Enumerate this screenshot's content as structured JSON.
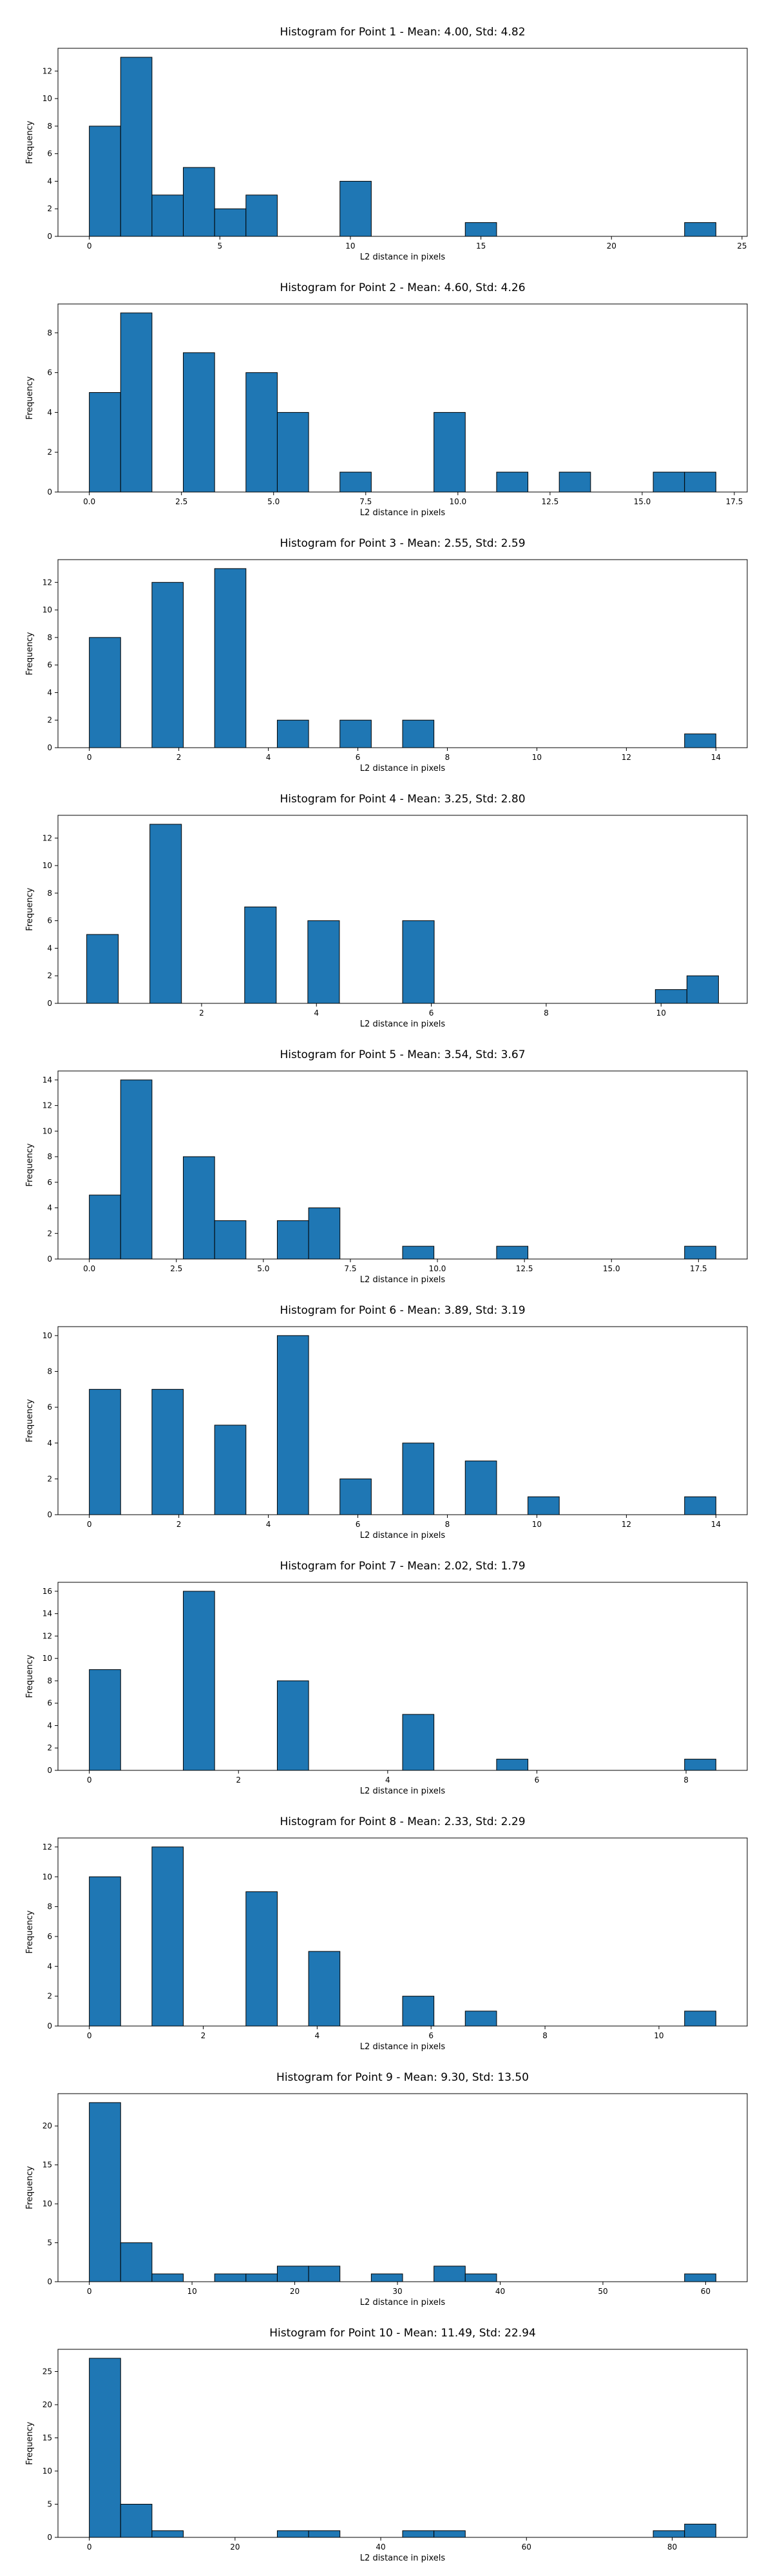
{
  "chart_data": [
    {
      "type": "bar",
      "title": "Histogram for Point 1 - Mean: 4.00, Std: 4.82",
      "xlabel": "L2 distance in pixels",
      "ylabel": "Frequency",
      "xlim": [
        -1.2,
        25.2
      ],
      "ylim": [
        0,
        13.65
      ],
      "xticks": [
        {
          "v": 0,
          "label": "0"
        },
        {
          "v": 5,
          "label": "5"
        },
        {
          "v": 10,
          "label": "10"
        },
        {
          "v": 15,
          "label": "15"
        },
        {
          "v": 20,
          "label": "20"
        },
        {
          "v": 25,
          "label": "25"
        }
      ],
      "yticks": [
        {
          "v": 0,
          "label": "0"
        },
        {
          "v": 2,
          "label": "2"
        },
        {
          "v": 4,
          "label": "4"
        },
        {
          "v": 6,
          "label": "6"
        },
        {
          "v": 8,
          "label": "8"
        },
        {
          "v": 10,
          "label": "10"
        },
        {
          "v": 12,
          "label": "12"
        }
      ],
      "bins": [
        0,
        1.2,
        2.4,
        3.6,
        4.8,
        6.0,
        7.2,
        8.4,
        9.6,
        10.8,
        12.0,
        13.2,
        14.4,
        15.6,
        16.8,
        18.0,
        19.2,
        20.4,
        21.6,
        22.8,
        24.0
      ],
      "counts": [
        8,
        13,
        3,
        5,
        2,
        3,
        0,
        0,
        4,
        0,
        0,
        0,
        1,
        0,
        0,
        0,
        0,
        0,
        0,
        1
      ]
    },
    {
      "type": "bar",
      "title": "Histogram for Point 2 - Mean: 4.60, Std: 4.26",
      "xlabel": "L2 distance in pixels",
      "ylabel": "Frequency",
      "xlim": [
        -0.85,
        17.85
      ],
      "ylim": [
        0,
        9.45
      ],
      "xticks": [
        {
          "v": 0,
          "label": "0.0"
        },
        {
          "v": 2.5,
          "label": "2.5"
        },
        {
          "v": 5,
          "label": "5.0"
        },
        {
          "v": 7.5,
          "label": "7.5"
        },
        {
          "v": 10,
          "label": "10.0"
        },
        {
          "v": 12.5,
          "label": "12.5"
        },
        {
          "v": 15,
          "label": "15.0"
        },
        {
          "v": 17.5,
          "label": "17.5"
        }
      ],
      "yticks": [
        {
          "v": 0,
          "label": "0"
        },
        {
          "v": 2,
          "label": "2"
        },
        {
          "v": 4,
          "label": "4"
        },
        {
          "v": 6,
          "label": "6"
        },
        {
          "v": 8,
          "label": "8"
        }
      ],
      "bins": [
        0,
        0.85,
        1.7,
        2.55,
        3.4,
        4.25,
        5.1,
        5.95,
        6.8,
        7.65,
        8.5,
        9.35,
        10.2,
        11.05,
        11.9,
        12.75,
        13.6,
        14.45,
        15.3,
        16.15,
        17.0
      ],
      "counts": [
        5,
        9,
        0,
        7,
        0,
        6,
        4,
        0,
        1,
        0,
        0,
        4,
        0,
        1,
        0,
        1,
        0,
        0,
        1,
        1
      ]
    },
    {
      "type": "bar",
      "title": "Histogram for Point 3 - Mean: 2.55, Std: 2.59",
      "xlabel": "L2 distance in pixels",
      "ylabel": "Frequency",
      "xlim": [
        -0.7,
        14.7
      ],
      "ylim": [
        0,
        13.65
      ],
      "xticks": [
        {
          "v": 0,
          "label": "0"
        },
        {
          "v": 2,
          "label": "2"
        },
        {
          "v": 4,
          "label": "4"
        },
        {
          "v": 6,
          "label": "6"
        },
        {
          "v": 8,
          "label": "8"
        },
        {
          "v": 10,
          "label": "10"
        },
        {
          "v": 12,
          "label": "12"
        },
        {
          "v": 14,
          "label": "14"
        }
      ],
      "yticks": [
        {
          "v": 0,
          "label": "0"
        },
        {
          "v": 2,
          "label": "2"
        },
        {
          "v": 4,
          "label": "4"
        },
        {
          "v": 6,
          "label": "6"
        },
        {
          "v": 8,
          "label": "8"
        },
        {
          "v": 10,
          "label": "10"
        },
        {
          "v": 12,
          "label": "12"
        }
      ],
      "bins": [
        0,
        0.7,
        1.4,
        2.1,
        2.8,
        3.5,
        4.2,
        4.9,
        5.6,
        6.3,
        7.0,
        7.7,
        8.4,
        9.1,
        9.8,
        10.5,
        11.2,
        11.9,
        12.6,
        13.3,
        14.0
      ],
      "counts": [
        8,
        0,
        12,
        0,
        13,
        0,
        2,
        0,
        2,
        0,
        2,
        0,
        0,
        0,
        0,
        0,
        0,
        0,
        0,
        1
      ]
    },
    {
      "type": "bar",
      "title": "Histogram for Point 4 - Mean: 3.25, Std: 2.80",
      "xlabel": "L2 distance in pixels",
      "ylabel": "Frequency",
      "xlim": [
        -0.5,
        11.5
      ],
      "ylim": [
        0,
        13.65
      ],
      "xticks": [
        {
          "v": 2,
          "label": "2"
        },
        {
          "v": 4,
          "label": "4"
        },
        {
          "v": 6,
          "label": "6"
        },
        {
          "v": 8,
          "label": "8"
        },
        {
          "v": 10,
          "label": "10"
        }
      ],
      "yticks": [
        {
          "v": 0,
          "label": "0"
        },
        {
          "v": 2,
          "label": "2"
        },
        {
          "v": 4,
          "label": "4"
        },
        {
          "v": 6,
          "label": "6"
        },
        {
          "v": 8,
          "label": "8"
        },
        {
          "v": 10,
          "label": "10"
        },
        {
          "v": 12,
          "label": "12"
        }
      ],
      "bins": [
        0,
        0.5,
        1.0,
        1.5,
        2.0,
        2.5,
        3.0,
        3.5,
        4.0,
        4.5,
        5.0,
        5.5,
        6.0,
        6.5,
        7.0,
        7.5,
        8.0,
        8.5,
        9.0,
        9.5,
        10.0
      ],
      "bins_note": "",
      "custom_bins": [
        0,
        0.55,
        1.1,
        1.65,
        2.2,
        2.75,
        3.3,
        3.85,
        4.4,
        4.95,
        5.5,
        6.05,
        6.6,
        7.15,
        7.7,
        8.25,
        8.8,
        9.35,
        9.9,
        10.45,
        11.0
      ],
      "counts": [
        5,
        0,
        13,
        0,
        0,
        7,
        0,
        6,
        0,
        0,
        6,
        0,
        0,
        0,
        0,
        0,
        0,
        0,
        1,
        2
      ]
    },
    {
      "type": "bar",
      "title": "Histogram for Point 5 - Mean: 3.54, Std: 3.67",
      "xlabel": "L2 distance in pixels",
      "ylabel": "Frequency",
      "xlim": [
        -0.9,
        18.9
      ],
      "ylim": [
        0,
        14.7
      ],
      "xticks": [
        {
          "v": 0,
          "label": "0.0"
        },
        {
          "v": 2.5,
          "label": "2.5"
        },
        {
          "v": 5,
          "label": "5.0"
        },
        {
          "v": 7.5,
          "label": "7.5"
        },
        {
          "v": 10,
          "label": "10.0"
        },
        {
          "v": 12.5,
          "label": "12.5"
        },
        {
          "v": 15,
          "label": "15.0"
        },
        {
          "v": 17.5,
          "label": "17.5"
        }
      ],
      "yticks": [
        {
          "v": 0,
          "label": "0"
        },
        {
          "v": 2,
          "label": "2"
        },
        {
          "v": 4,
          "label": "4"
        },
        {
          "v": 6,
          "label": "6"
        },
        {
          "v": 8,
          "label": "8"
        },
        {
          "v": 10,
          "label": "10"
        },
        {
          "v": 12,
          "label": "12"
        },
        {
          "v": 14,
          "label": "14"
        }
      ],
      "bins": [
        0,
        0.9,
        1.8,
        2.7,
        3.6,
        4.5,
        5.4,
        6.3,
        7.2,
        8.1,
        9.0,
        9.9,
        10.8,
        11.7,
        12.6,
        13.5,
        14.4,
        15.3,
        16.2,
        17.1,
        18.0
      ],
      "counts": [
        5,
        14,
        0,
        8,
        3,
        0,
        3,
        4,
        0,
        0,
        1,
        0,
        0,
        1,
        0,
        0,
        0,
        0,
        0,
        1
      ]
    },
    {
      "type": "bar",
      "title": "Histogram for Point 6 - Mean: 3.89, Std: 3.19",
      "xlabel": "L2 distance in pixels",
      "ylabel": "Frequency",
      "xlim": [
        -0.7,
        14.7
      ],
      "ylim": [
        0,
        10.5
      ],
      "xticks": [
        {
          "v": 0,
          "label": "0"
        },
        {
          "v": 2,
          "label": "2"
        },
        {
          "v": 4,
          "label": "4"
        },
        {
          "v": 6,
          "label": "6"
        },
        {
          "v": 8,
          "label": "8"
        },
        {
          "v": 10,
          "label": "10"
        },
        {
          "v": 12,
          "label": "12"
        },
        {
          "v": 14,
          "label": "14"
        }
      ],
      "yticks": [
        {
          "v": 0,
          "label": "0"
        },
        {
          "v": 2,
          "label": "2"
        },
        {
          "v": 4,
          "label": "4"
        },
        {
          "v": 6,
          "label": "6"
        },
        {
          "v": 8,
          "label": "8"
        },
        {
          "v": 10,
          "label": "10"
        }
      ],
      "bins": [
        0,
        0.7,
        1.4,
        2.1,
        2.8,
        3.5,
        4.2,
        4.9,
        5.6,
        6.3,
        7.0,
        7.7,
        8.4,
        9.1,
        9.8,
        10.5,
        11.2,
        11.9,
        12.6,
        13.3,
        14.0
      ],
      "counts": [
        7,
        0,
        7,
        0,
        5,
        0,
        10,
        0,
        2,
        0,
        4,
        0,
        3,
        0,
        1,
        0,
        0,
        0,
        0,
        1
      ]
    },
    {
      "type": "bar",
      "title": "Histogram for Point 7 - Mean: 2.02, Std: 1.79",
      "xlabel": "L2 distance in pixels",
      "ylabel": "Frequency",
      "xlim": [
        -0.42,
        8.82
      ],
      "ylim": [
        0,
        16.8
      ],
      "xticks": [
        {
          "v": 0,
          "label": "0"
        },
        {
          "v": 2,
          "label": "2"
        },
        {
          "v": 4,
          "label": "4"
        },
        {
          "v": 6,
          "label": "6"
        },
        {
          "v": 8,
          "label": "8"
        }
      ],
      "yticks": [
        {
          "v": 0,
          "label": "0"
        },
        {
          "v": 2,
          "label": "2"
        },
        {
          "v": 4,
          "label": "4"
        },
        {
          "v": 6,
          "label": "6"
        },
        {
          "v": 8,
          "label": "8"
        },
        {
          "v": 10,
          "label": "10"
        },
        {
          "v": 12,
          "label": "12"
        },
        {
          "v": 14,
          "label": "14"
        },
        {
          "v": 16,
          "label": "16"
        }
      ],
      "bins": [
        0,
        0.42,
        0.84,
        1.26,
        1.68,
        2.1,
        2.52,
        2.94,
        3.36,
        3.78,
        4.2,
        4.62,
        5.04,
        5.46,
        5.88,
        6.3,
        6.72,
        7.14,
        7.56,
        7.98,
        8.4
      ],
      "counts": [
        9,
        0,
        0,
        16,
        0,
        0,
        8,
        0,
        0,
        0,
        5,
        0,
        0,
        1,
        0,
        0,
        0,
        0,
        0,
        1
      ]
    },
    {
      "type": "bar",
      "title": "Histogram for Point 8 - Mean: 2.33, Std: 2.29",
      "xlabel": "L2 distance in pixels",
      "ylabel": "Frequency",
      "xlim": [
        -0.55,
        11.55
      ],
      "ylim": [
        0,
        12.6
      ],
      "xticks": [
        {
          "v": 0,
          "label": "0"
        },
        {
          "v": 2,
          "label": "2"
        },
        {
          "v": 4,
          "label": "4"
        },
        {
          "v": 6,
          "label": "6"
        },
        {
          "v": 8,
          "label": "8"
        },
        {
          "v": 10,
          "label": "10"
        }
      ],
      "yticks": [
        {
          "v": 0,
          "label": "0"
        },
        {
          "v": 2,
          "label": "2"
        },
        {
          "v": 4,
          "label": "4"
        },
        {
          "v": 6,
          "label": "6"
        },
        {
          "v": 8,
          "label": "8"
        },
        {
          "v": 10,
          "label": "10"
        },
        {
          "v": 12,
          "label": "12"
        }
      ],
      "bins": [
        0,
        0.55,
        1.1,
        1.65,
        2.2,
        2.75,
        3.3,
        3.85,
        4.4,
        4.95,
        5.5,
        6.05,
        6.6,
        7.15,
        7.7,
        8.25,
        8.8,
        9.35,
        9.9,
        10.45,
        11.0
      ],
      "counts": [
        10,
        0,
        12,
        0,
        0,
        9,
        0,
        5,
        0,
        0,
        2,
        0,
        1,
        0,
        0,
        0,
        0,
        0,
        0,
        1
      ]
    },
    {
      "type": "bar",
      "title": "Histogram for Point 9 - Mean: 9.30, Std: 13.50",
      "xlabel": "L2 distance in pixels",
      "ylabel": "Frequency",
      "xlim": [
        -3.05,
        64.05
      ],
      "ylim": [
        0,
        24.15
      ],
      "xticks": [
        {
          "v": 0,
          "label": "0"
        },
        {
          "v": 10,
          "label": "10"
        },
        {
          "v": 20,
          "label": "20"
        },
        {
          "v": 30,
          "label": "30"
        },
        {
          "v": 40,
          "label": "40"
        },
        {
          "v": 50,
          "label": "50"
        },
        {
          "v": 60,
          "label": "60"
        }
      ],
      "yticks": [
        {
          "v": 0,
          "label": "0"
        },
        {
          "v": 5,
          "label": "5"
        },
        {
          "v": 10,
          "label": "10"
        },
        {
          "v": 15,
          "label": "15"
        },
        {
          "v": 20,
          "label": "20"
        }
      ],
      "bins": [
        0,
        3.05,
        6.1,
        9.15,
        12.2,
        15.25,
        18.3,
        21.35,
        24.4,
        27.45,
        30.5,
        33.55,
        36.6,
        39.65,
        42.7,
        45.75,
        48.8,
        51.85,
        54.9,
        57.95,
        61.0
      ],
      "counts": [
        23,
        5,
        1,
        0,
        1,
        1,
        2,
        2,
        0,
        1,
        0,
        2,
        1,
        0,
        0,
        0,
        0,
        0,
        0,
        1
      ]
    },
    {
      "type": "bar",
      "title": "Histogram for Point 10 - Mean: 11.49, Std: 22.94",
      "xlabel": "L2 distance in pixels",
      "ylabel": "Frequency",
      "xlim": [
        -4.3,
        90.3
      ],
      "ylim": [
        0,
        28.35
      ],
      "xticks": [
        {
          "v": 0,
          "label": "0"
        },
        {
          "v": 20,
          "label": "20"
        },
        {
          "v": 40,
          "label": "40"
        },
        {
          "v": 60,
          "label": "60"
        },
        {
          "v": 80,
          "label": "80"
        }
      ],
      "yticks": [
        {
          "v": 0,
          "label": "0"
        },
        {
          "v": 5,
          "label": "5"
        },
        {
          "v": 10,
          "label": "10"
        },
        {
          "v": 15,
          "label": "15"
        },
        {
          "v": 20,
          "label": "20"
        },
        {
          "v": 25,
          "label": "25"
        }
      ],
      "bins": [
        0,
        4.3,
        8.6,
        12.9,
        17.2,
        21.5,
        25.8,
        30.1,
        34.4,
        38.7,
        43.0,
        47.3,
        51.6,
        55.9,
        60.2,
        64.5,
        68.8,
        73.1,
        77.4,
        81.7,
        86.0
      ],
      "counts": [
        27,
        5,
        1,
        0,
        0,
        0,
        1,
        1,
        0,
        0,
        1,
        1,
        0,
        0,
        0,
        0,
        0,
        0,
        1,
        2
      ]
    }
  ]
}
